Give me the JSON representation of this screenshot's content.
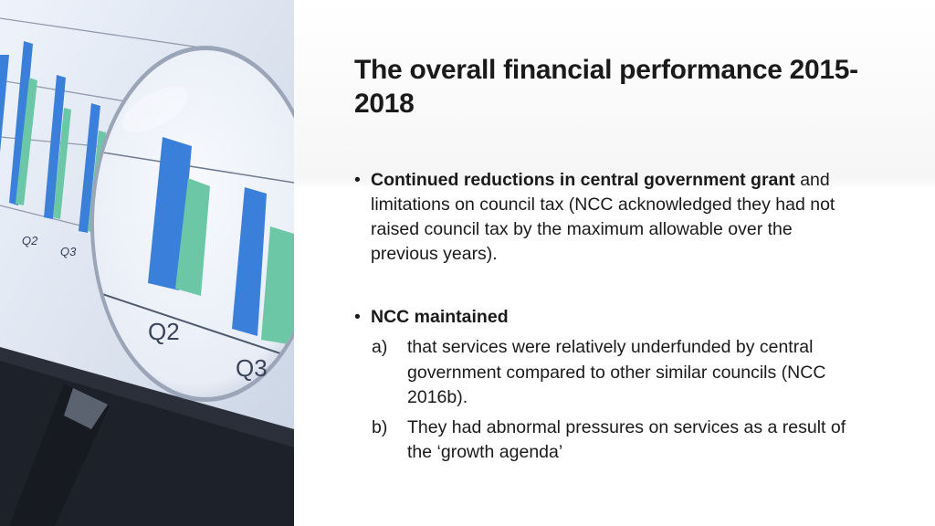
{
  "title": "The overall financial performance 2015-2018",
  "bullets": {
    "first": {
      "bold": "Continued reductions in central government grant",
      "rest": " and limitations on council tax (NCC acknowledged they had not raised council tax by the maximum allowable over the previous years)."
    },
    "second": {
      "bold": "NCC maintained",
      "items": [
        {
          "marker": "a)",
          "text": "that services were relatively underfunded by central government compared to other similar councils (NCC 2016b)."
        },
        {
          "marker": "b)",
          "text": "They had abnormal pressures on services as a result of the ‘growth agenda’"
        }
      ]
    }
  },
  "photo": {
    "labels": {
      "q2_small": "Q2",
      "q3_small": "Q3",
      "q2_large": "Q2",
      "q3_large": "Q3"
    },
    "colors": {
      "bar_blue": "#3a7fd9",
      "bar_green": "#6cc7a6"
    }
  }
}
